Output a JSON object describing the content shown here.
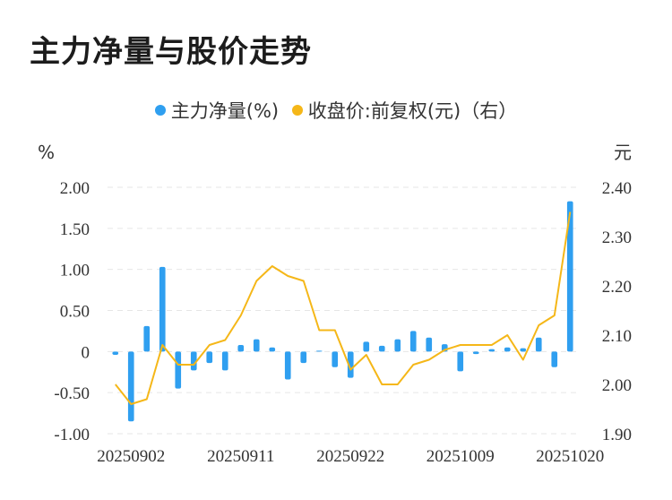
{
  "chart_data": {
    "type": "bar+line",
    "title": "主力净量与股价走势",
    "legend": [
      "主力净量(%)",
      "收盘价:前复权(元)（右）"
    ],
    "left_unit": "%",
    "right_unit": "元",
    "left_ticks": [
      "2.00",
      "1.50",
      "1.00",
      "0.50",
      "0",
      "-0.50",
      "-1.00"
    ],
    "right_ticks": [
      "2.40",
      "2.30",
      "2.20",
      "2.10",
      "2.00",
      "1.90"
    ],
    "ylim_left": [
      -1.0,
      2.0
    ],
    "ylim_right": [
      1.9,
      2.4
    ],
    "x_labels": [
      "20250902",
      "20250911",
      "20250922",
      "20251009",
      "20251020"
    ],
    "x_label_indices": [
      1,
      8,
      15,
      22,
      29
    ],
    "series": [
      {
        "name": "主力净量(%)",
        "type": "bar",
        "color": "#2f9ff0",
        "values": [
          -0.04,
          -0.85,
          0.31,
          1.03,
          -0.45,
          -0.23,
          -0.14,
          -0.23,
          0.08,
          0.15,
          0.05,
          -0.34,
          -0.14,
          0.01,
          -0.19,
          -0.32,
          0.12,
          0.07,
          0.15,
          0.25,
          0.17,
          0.09,
          -0.24,
          -0.03,
          0.03,
          0.05,
          0.04,
          0.17,
          -0.19,
          1.83
        ]
      },
      {
        "name": "收盘价:前复权(元)（右）",
        "type": "line",
        "color": "#f5b718",
        "values": [
          2.0,
          1.96,
          1.97,
          2.08,
          2.04,
          2.04,
          2.08,
          2.09,
          2.14,
          2.21,
          2.24,
          2.22,
          2.21,
          2.11,
          2.11,
          2.03,
          2.06,
          2.0,
          2.0,
          2.04,
          2.05,
          2.07,
          2.08,
          2.08,
          2.08,
          2.1,
          2.05,
          2.12,
          2.14,
          2.35
        ]
      }
    ],
    "grid": true
  }
}
